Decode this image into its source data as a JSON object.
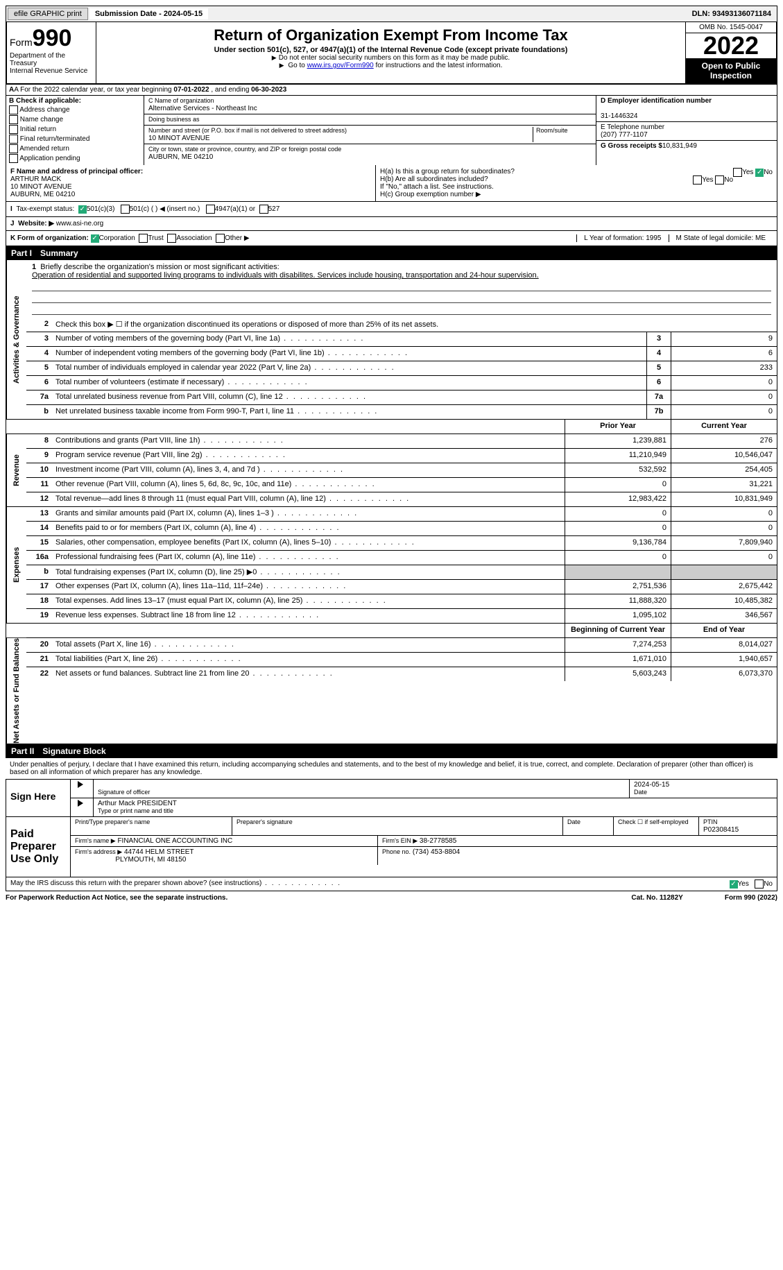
{
  "top": {
    "efile": "efile GRAPHIC print",
    "submission_label": "Submission Date - 2024-05-15",
    "dln": "DLN: 93493136071184"
  },
  "header": {
    "form_word": "Form",
    "form_num": "990",
    "dept": "Department of the Treasury",
    "irs": "Internal Revenue Service",
    "title": "Return of Organization Exempt From Income Tax",
    "subtitle": "Under section 501(c), 527, or 4947(a)(1) of the Internal Revenue Code (except private foundations)",
    "note1": "Do not enter social security numbers on this form as it may be made public.",
    "note2_pre": "Go to ",
    "note2_link": "www.irs.gov/Form990",
    "note2_post": " for instructions and the latest information.",
    "omb": "OMB No. 1545-0047",
    "year": "2022",
    "open": "Open to Public Inspection"
  },
  "rowA": {
    "text_pre": "A For the 2022 calendar year, or tax year beginning ",
    "begin": "07-01-2022",
    "mid": " , and ending ",
    "end": "06-30-2023"
  },
  "colB": {
    "label": "B Check if applicable:",
    "opts": [
      "Address change",
      "Name change",
      "Initial return",
      "Final return/terminated",
      "Amended return",
      "Application pending"
    ]
  },
  "colC": {
    "name_label": "C Name of organization",
    "name": "Alternative Services - Northeast Inc",
    "dba_label": "Doing business as",
    "addr_label": "Number and street (or P.O. box if mail is not delivered to street address)",
    "room_label": "Room/suite",
    "addr": "10 MINOT AVENUE",
    "city_label": "City or town, state or province, country, and ZIP or foreign postal code",
    "city": "AUBURN, ME  04210"
  },
  "colD": {
    "d_label": "D Employer identification number",
    "ein": "31-1446324",
    "e_label": "E Telephone number",
    "phone": "(207) 777-1107",
    "g_label": "G Gross receipts $",
    "g_val": "10,831,949"
  },
  "rowF": {
    "f_label": "F Name and address of principal officer:",
    "f_name": "ARTHUR MACK",
    "f_addr1": "10 MINOT AVENUE",
    "f_addr2": "AUBURN, ME  04210",
    "ha": "H(a)  Is this a group return for subordinates?",
    "hb": "H(b)  Are all subordinates included?",
    "hb_note": "If \"No,\" attach a list. See instructions.",
    "hc": "H(c)  Group exemption number ▶",
    "yes": "Yes",
    "no": "No"
  },
  "taxRow": {
    "label": "Tax-exempt status:",
    "o1": "501(c)(3)",
    "o2": "501(c) (   ) ◀ (insert no.)",
    "o3": "4947(a)(1) or",
    "o4": "527"
  },
  "webRow": {
    "label": "Website: ▶",
    "val": "www.asi-ne.org"
  },
  "klRow": {
    "k": "K Form of organization:",
    "k1": "Corporation",
    "k2": "Trust",
    "k3": "Association",
    "k4": "Other ▶",
    "l": "L Year of formation: 1995",
    "m": "M State of legal domicile: ME"
  },
  "part1": {
    "num": "Part I",
    "title": "Summary"
  },
  "mission": {
    "ln": "1",
    "label": "Briefly describe the organization's mission or most significant activities:",
    "text": "Operation of residential and supported living programs to individuals with disabilites. Services include housing, transportation and 24-hour supervision."
  },
  "sideLabels": {
    "ag": "Activities & Governance",
    "rev": "Revenue",
    "exp": "Expenses",
    "na": "Net Assets or Fund Balances"
  },
  "lines_ag": [
    {
      "n": "2",
      "d": "Check this box ▶ ☐ if the organization discontinued its operations or disposed of more than 25% of its net assets."
    },
    {
      "n": "3",
      "d": "Number of voting members of the governing body (Part VI, line 1a)",
      "box": "3",
      "v": "9"
    },
    {
      "n": "4",
      "d": "Number of independent voting members of the governing body (Part VI, line 1b)",
      "box": "4",
      "v": "6"
    },
    {
      "n": "5",
      "d": "Total number of individuals employed in calendar year 2022 (Part V, line 2a)",
      "box": "5",
      "v": "233"
    },
    {
      "n": "6",
      "d": "Total number of volunteers (estimate if necessary)",
      "box": "6",
      "v": "0"
    },
    {
      "n": "7a",
      "d": "Total unrelated business revenue from Part VIII, column (C), line 12",
      "box": "7a",
      "v": "0"
    },
    {
      "n": "b",
      "d": "Net unrelated business taxable income from Form 990-T, Part I, line 11",
      "box": "7b",
      "v": "0"
    }
  ],
  "colHdr": {
    "py": "Prior Year",
    "cy": "Current Year",
    "bcy": "Beginning of Current Year",
    "eoy": "End of Year"
  },
  "lines_rev": [
    {
      "n": "8",
      "d": "Contributions and grants (Part VIII, line 1h)",
      "py": "1,239,881",
      "cy": "276"
    },
    {
      "n": "9",
      "d": "Program service revenue (Part VIII, line 2g)",
      "py": "11,210,949",
      "cy": "10,546,047"
    },
    {
      "n": "10",
      "d": "Investment income (Part VIII, column (A), lines 3, 4, and 7d )",
      "py": "532,592",
      "cy": "254,405"
    },
    {
      "n": "11",
      "d": "Other revenue (Part VIII, column (A), lines 5, 6d, 8c, 9c, 10c, and 11e)",
      "py": "0",
      "cy": "31,221"
    },
    {
      "n": "12",
      "d": "Total revenue—add lines 8 through 11 (must equal Part VIII, column (A), line 12)",
      "py": "12,983,422",
      "cy": "10,831,949"
    }
  ],
  "lines_exp": [
    {
      "n": "13",
      "d": "Grants and similar amounts paid (Part IX, column (A), lines 1–3 )",
      "py": "0",
      "cy": "0"
    },
    {
      "n": "14",
      "d": "Benefits paid to or for members (Part IX, column (A), line 4)",
      "py": "0",
      "cy": "0"
    },
    {
      "n": "15",
      "d": "Salaries, other compensation, employee benefits (Part IX, column (A), lines 5–10)",
      "py": "9,136,784",
      "cy": "7,809,940"
    },
    {
      "n": "16a",
      "d": "Professional fundraising fees (Part IX, column (A), line 11e)",
      "py": "0",
      "cy": "0"
    },
    {
      "n": "b",
      "d": "Total fundraising expenses (Part IX, column (D), line 25) ▶0",
      "py": "",
      "cy": "",
      "shade": true
    },
    {
      "n": "17",
      "d": "Other expenses (Part IX, column (A), lines 11a–11d, 11f–24e)",
      "py": "2,751,536",
      "cy": "2,675,442"
    },
    {
      "n": "18",
      "d": "Total expenses. Add lines 13–17 (must equal Part IX, column (A), line 25)",
      "py": "11,888,320",
      "cy": "10,485,382"
    },
    {
      "n": "19",
      "d": "Revenue less expenses. Subtract line 18 from line 12",
      "py": "1,095,102",
      "cy": "346,567"
    }
  ],
  "lines_na": [
    {
      "n": "20",
      "d": "Total assets (Part X, line 16)",
      "py": "7,274,253",
      "cy": "8,014,027"
    },
    {
      "n": "21",
      "d": "Total liabilities (Part X, line 26)",
      "py": "1,671,010",
      "cy": "1,940,657"
    },
    {
      "n": "22",
      "d": "Net assets or fund balances. Subtract line 21 from line 20",
      "py": "5,603,243",
      "cy": "6,073,370"
    }
  ],
  "part2": {
    "num": "Part II",
    "title": "Signature Block"
  },
  "penalties": "Under penalties of perjury, I declare that I have examined this return, including accompanying schedules and statements, and to the best of my knowledge and belief, it is true, correct, and complete. Declaration of preparer (other than officer) is based on all information of which preparer has any knowledge.",
  "sign": {
    "here": "Sign Here",
    "sig_label": "Signature of officer",
    "date": "2024-05-15",
    "date_label": "Date",
    "name": "Arthur Mack PRESIDENT",
    "name_label": "Type or print name and title"
  },
  "preparer": {
    "title": "Paid Preparer Use Only",
    "pname_label": "Print/Type preparer's name",
    "psig_label": "Preparer's signature",
    "pdate_label": "Date",
    "check_label": "Check ☐ if self-employed",
    "ptin_label": "PTIN",
    "ptin": "P02308415",
    "firm_name_label": "Firm's name    ▶",
    "firm_name": "FINANCIAL ONE ACCOUNTING INC",
    "firm_ein_label": "Firm's EIN ▶",
    "firm_ein": "38-2778585",
    "firm_addr_label": "Firm's address ▶",
    "firm_addr1": "44744 HELM STREET",
    "firm_addr2": "PLYMOUTH, MI  48150",
    "phone_label": "Phone no.",
    "phone": "(734) 453-8804"
  },
  "discuss": {
    "text": "May the IRS discuss this return with the preparer shown above? (see instructions)",
    "yes": "Yes",
    "no": "No"
  },
  "footer": {
    "left": "For Paperwork Reduction Act Notice, see the separate instructions.",
    "mid": "Cat. No. 11282Y",
    "right": "Form 990 (2022)"
  }
}
